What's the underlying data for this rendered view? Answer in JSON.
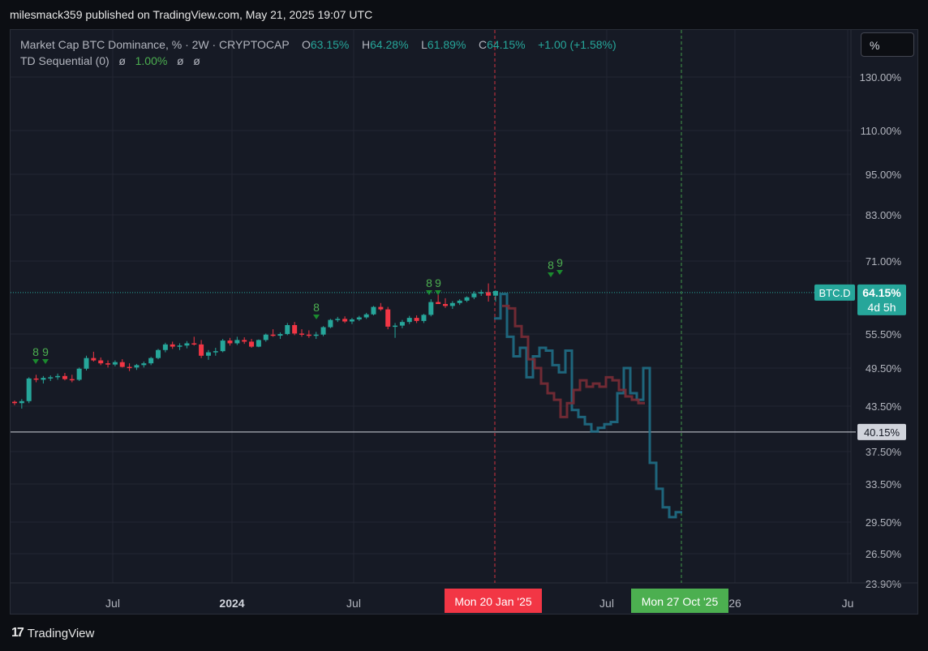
{
  "header": {
    "published": "milesmack359 published on TradingView.com, May 21, 2025 19:07 UTC"
  },
  "legend": {
    "title": "Market Cap BTC Dominance, % · 2W · CRYPTOCAP",
    "o_label": "O",
    "o_value": "63.15%",
    "h_label": "H",
    "h_value": "64.28%",
    "l_label": "L",
    "l_value": "61.89%",
    "c_label": "C",
    "c_value": "64.15%",
    "change": "+1.00 (+1.58%)",
    "indicator": "TD Sequential (0)",
    "ind_v1": "ø",
    "ind_v2": "1.00%",
    "ind_v3": "ø",
    "ind_v4": "ø"
  },
  "scale_button": "%",
  "footer": {
    "brand": "TradingView",
    "brand_mark": "17"
  },
  "colors": {
    "up": "#26a69a",
    "down": "#f23645",
    "ghost_up": "#1f6e86",
    "ghost_down": "#7a2c36",
    "grid": "#232632",
    "axis_text": "#b2b5be",
    "bg": "#161a25"
  },
  "chart_data": {
    "type": "candlestick",
    "symbol": "BTC.D",
    "timeframe": "2W",
    "y_scale": "log",
    "y_ticks": [
      "130.00%",
      "110.00%",
      "95.00%",
      "83.00%",
      "71.00%",
      "55.50%",
      "49.50%",
      "43.50%",
      "37.50%",
      "33.50%",
      "29.50%",
      "26.50%",
      "23.90%"
    ],
    "x_ticks": [
      "Jul",
      "2024",
      "Jul",
      "Jul",
      "26",
      "Ju"
    ],
    "last_price": {
      "label": "BTC.D",
      "value": "64.15%",
      "countdown": "4d 5h"
    },
    "horizontal_line": {
      "value": 40.15,
      "label": "40.15%"
    },
    "vertical_markers": [
      {
        "label": "Mon 20 Jan '25",
        "color": "#f23645"
      },
      {
        "label": "Mon 27 Oct '25",
        "color": "#4caf50"
      }
    ],
    "td_labels": [
      "8",
      "9",
      "8",
      "8",
      "9",
      "8",
      "9"
    ],
    "candles": [
      [
        44.2,
        44.4,
        43.7,
        44.0
      ],
      [
        44.0,
        44.6,
        43.2,
        44.3
      ],
      [
        44.3,
        48.0,
        44.0,
        47.8
      ],
      [
        47.8,
        48.4,
        47.2,
        47.6
      ],
      [
        47.6,
        48.2,
        47.0,
        47.9
      ],
      [
        47.9,
        48.3,
        47.4,
        48.0
      ],
      [
        48.0,
        48.6,
        47.6,
        48.2
      ],
      [
        48.2,
        48.7,
        47.5,
        47.7
      ],
      [
        47.7,
        48.4,
        47.2,
        47.6
      ],
      [
        47.6,
        49.6,
        47.4,
        49.4
      ],
      [
        49.4,
        51.6,
        49.1,
        51.2
      ],
      [
        51.2,
        52.3,
        50.6,
        50.8
      ],
      [
        50.8,
        51.3,
        50.0,
        50.3
      ],
      [
        50.3,
        50.8,
        49.6,
        50.1
      ],
      [
        50.1,
        50.8,
        49.8,
        50.5
      ],
      [
        50.5,
        51.0,
        49.6,
        49.7
      ],
      [
        49.7,
        50.3,
        49.0,
        49.6
      ],
      [
        49.6,
        50.2,
        49.2,
        50.0
      ],
      [
        50.0,
        50.6,
        49.6,
        50.3
      ],
      [
        50.3,
        51.4,
        50.0,
        51.2
      ],
      [
        51.2,
        52.8,
        51.0,
        52.6
      ],
      [
        52.6,
        53.9,
        52.2,
        53.6
      ],
      [
        53.6,
        54.1,
        52.8,
        53.2
      ],
      [
        53.2,
        53.8,
        52.6,
        53.4
      ],
      [
        53.4,
        54.2,
        52.9,
        53.8
      ],
      [
        53.8,
        55.0,
        53.4,
        53.6
      ],
      [
        53.6,
        54.4,
        51.2,
        51.6
      ],
      [
        51.6,
        52.6,
        50.9,
        52.2
      ],
      [
        52.2,
        53.0,
        51.6,
        52.4
      ],
      [
        52.4,
        54.6,
        52.2,
        54.3
      ],
      [
        54.3,
        54.8,
        53.4,
        53.8
      ],
      [
        53.8,
        55.0,
        53.5,
        54.4
      ],
      [
        54.4,
        54.9,
        53.7,
        54.1
      ],
      [
        54.1,
        54.6,
        53.0,
        53.2
      ],
      [
        53.2,
        54.5,
        53.1,
        54.4
      ],
      [
        54.4,
        55.6,
        54.1,
        55.4
      ],
      [
        55.4,
        56.4,
        55.0,
        55.2
      ],
      [
        55.2,
        55.8,
        54.6,
        55.5
      ],
      [
        55.5,
        57.6,
        55.3,
        57.2
      ],
      [
        57.2,
        57.8,
        55.3,
        55.6
      ],
      [
        55.6,
        56.4,
        55.0,
        55.4
      ],
      [
        55.4,
        56.2,
        54.8,
        55.2
      ],
      [
        55.2,
        55.9,
        54.6,
        55.4
      ],
      [
        55.4,
        57.0,
        55.1,
        56.8
      ],
      [
        56.8,
        58.4,
        56.6,
        58.2
      ],
      [
        58.2,
        58.8,
        57.8,
        58.4
      ],
      [
        58.4,
        58.9,
        57.6,
        57.9
      ],
      [
        57.9,
        58.6,
        57.4,
        58.3
      ],
      [
        58.3,
        59.0,
        58.0,
        58.7
      ],
      [
        58.7,
        59.6,
        58.4,
        59.3
      ],
      [
        59.3,
        61.0,
        59.1,
        60.8
      ],
      [
        60.8,
        61.6,
        60.0,
        60.3
      ],
      [
        60.3,
        60.8,
        56.4,
        56.9
      ],
      [
        56.9,
        57.6,
        54.8,
        57.1
      ],
      [
        57.1,
        58.2,
        56.6,
        57.8
      ],
      [
        57.8,
        59.0,
        57.4,
        58.6
      ],
      [
        58.6,
        59.1,
        57.6,
        58.0
      ],
      [
        58.0,
        59.4,
        57.6,
        59.2
      ],
      [
        59.2,
        62.4,
        58.9,
        61.8
      ],
      [
        61.8,
        64.3,
        61.4,
        61.4
      ],
      [
        61.4,
        62.6,
        60.6,
        61.0
      ],
      [
        61.0,
        62.0,
        60.4,
        61.6
      ],
      [
        61.6,
        62.4,
        61.2,
        62.1
      ],
      [
        62.1,
        63.0,
        61.8,
        62.8
      ],
      [
        62.8,
        64.1,
        62.4,
        63.6
      ],
      [
        63.6,
        64.4,
        63.1,
        63.9
      ],
      [
        63.9,
        65.8,
        61.9,
        63.15
      ],
      [
        63.15,
        64.28,
        61.89,
        64.15
      ]
    ],
    "ghost_series": [
      {
        "name": "",
        "color": "#1f6e86",
        "values": [
          58.5,
          63.5,
          55.0,
          51.5,
          53.0,
          48.0,
          51.5,
          53.0,
          52.5,
          50.0,
          48.8,
          52.5,
          43.0,
          42.0,
          41.0,
          40.0,
          40.5,
          41.0,
          41.3,
          45.5,
          49.5,
          45.5,
          44.5,
          49.5,
          36.0,
          33.0,
          31.0,
          30.0,
          30.5
        ]
      },
      {
        "name": "",
        "color": "#7a2c36",
        "values": [
          61.0,
          60.5,
          57.0,
          55.0,
          51.0,
          49.5,
          47.0,
          45.5,
          44.5,
          42.0,
          44.0,
          46.0,
          47.5,
          46.5,
          47.0,
          46.5,
          48.0,
          47.5,
          46.0,
          45.0,
          44.5,
          44.0
        ]
      }
    ]
  }
}
